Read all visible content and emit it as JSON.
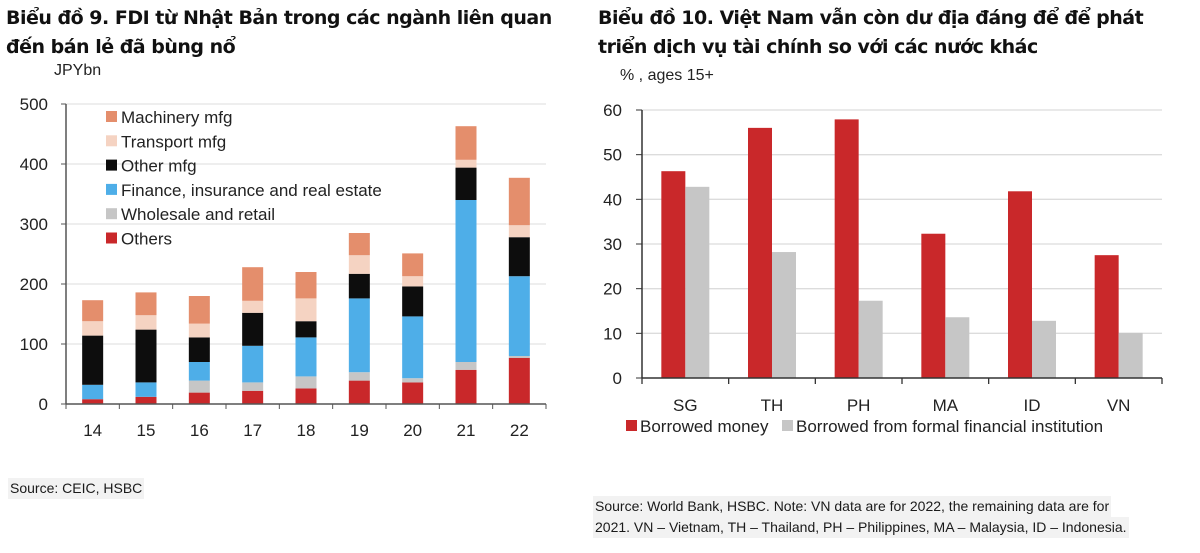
{
  "left_chart": {
    "title": "Biểu đồ 9. FDI từ Nhật Bản trong các ngành liên quan đến bán lẻ đã bùng nổ",
    "unit_label": "JPYbn",
    "source": "Source: CEIC, HSBC"
  },
  "right_chart": {
    "title": "Biểu đồ 10. Việt Nam vẫn còn dư địa đáng để để phát triển dịch vụ tài chính so với các nước khác",
    "unit_label": "% , ages 15+",
    "source_line1": "Source: World Bank, HSBC. Note: VN data are for 2022, the remaining data are for",
    "source_line2": "2021. VN – Vietnam, TH – Thailand, PH – Philippines, MA – Malaysia, ID – Indonesia."
  },
  "chart_data": [
    {
      "type": "bar",
      "stacked": true,
      "title": "Biểu đồ 9. FDI từ Nhật Bản trong các ngành liên quan đến bán lẻ đã bùng nổ",
      "xlabel": "",
      "ylabel": "JPYbn",
      "ylim": [
        0,
        500
      ],
      "yticks": [
        0,
        100,
        200,
        300,
        400,
        500
      ],
      "grid": true,
      "legend_position": "top-left",
      "categories": [
        "14",
        "15",
        "16",
        "17",
        "18",
        "19",
        "20",
        "21",
        "22"
      ],
      "series": [
        {
          "name": "Others",
          "color": "#c9282a",
          "values": [
            8,
            12,
            19,
            22,
            26,
            39,
            36,
            57,
            77
          ]
        },
        {
          "name": "Wholesale and retail",
          "color": "#c6c6c6",
          "values": [
            0,
            0,
            20,
            14,
            20,
            14,
            7,
            13,
            3
          ]
        },
        {
          "name": "Finance, insurance and real estate",
          "color": "#4eaee8",
          "values": [
            24,
            24,
            31,
            61,
            65,
            123,
            103,
            270,
            133
          ]
        },
        {
          "name": "Other mfg",
          "color": "#0d0d0d",
          "values": [
            82,
            88,
            41,
            55,
            27,
            41,
            50,
            54,
            65
          ]
        },
        {
          "name": "Transport mfg",
          "color": "#f5d3c2",
          "values": [
            24,
            24,
            23,
            20,
            38,
            31,
            17,
            13,
            20
          ]
        },
        {
          "name": "Machinery mfg",
          "color": "#e48e6c",
          "values": [
            35,
            38,
            46,
            56,
            44,
            37,
            38,
            56,
            79
          ]
        }
      ],
      "legend_order": [
        "Machinery mfg",
        "Transport mfg",
        "Other mfg",
        "Finance, insurance and real estate",
        "Wholesale and retail",
        "Others"
      ],
      "source": "Source: CEIC, HSBC"
    },
    {
      "type": "bar",
      "stacked": false,
      "title": "Biểu đồ 10. Việt Nam vẫn còn dư địa đáng để để phát triển dịch vụ tài chính so với các nước khác",
      "xlabel": "",
      "ylabel": "% , ages 15+",
      "ylim": [
        0,
        60
      ],
      "yticks": [
        0,
        10,
        20,
        30,
        40,
        50,
        60
      ],
      "grid": true,
      "legend_position": "bottom",
      "categories": [
        "SG",
        "TH",
        "PH",
        "MA",
        "ID",
        "VN"
      ],
      "series": [
        {
          "name": "Borrowed money",
          "color": "#c9282a",
          "values": [
            46.3,
            56.0,
            57.9,
            32.3,
            41.8,
            27.5
          ]
        },
        {
          "name": "Borrowed from formal financial institution",
          "color": "#c6c6c6",
          "values": [
            42.8,
            28.2,
            17.3,
            13.6,
            12.8,
            10.1
          ]
        }
      ],
      "source": "Source: World Bank, HSBC. Note: VN data are for 2022, the remaining data are for 2021. VN – Vietnam, TH – Thailand, PH – Philippines, MA – Malaysia, ID – Indonesia."
    }
  ]
}
